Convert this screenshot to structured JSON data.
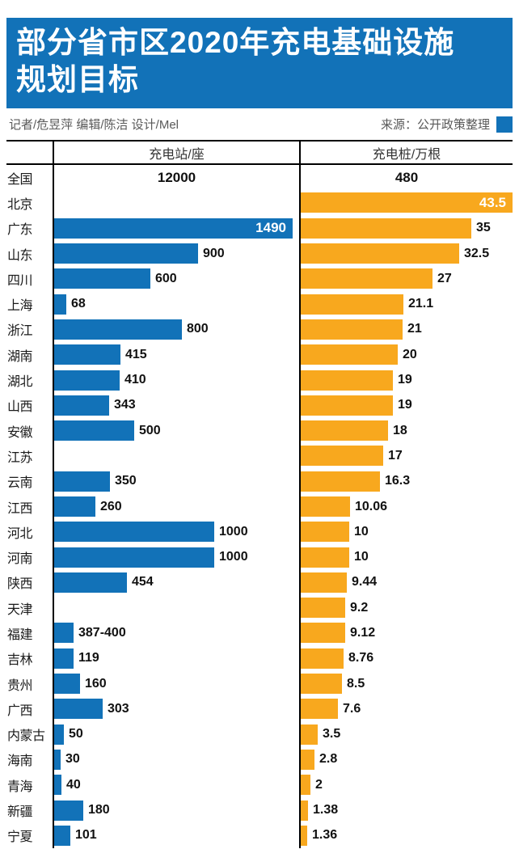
{
  "header": {
    "title_line1": "部分省市区2020年充电基础设施",
    "title_line2": "规划目标",
    "byline": "记者/危昱萍  编辑/陈洁  设计/Mel",
    "source": "来源：公开政策整理"
  },
  "columns": {
    "left": "充电站/座",
    "right": "充电桩/万根"
  },
  "colors": {
    "banner_blue": "#1272b8",
    "bar_blue": "#1272b8",
    "bar_yellow": "#f8a81e"
  },
  "chart_data": {
    "type": "bar",
    "orientation": "horizontal",
    "title": "部分省市区2020年充电基础设施规划目标",
    "categories": [
      "全国",
      "北京",
      "广东",
      "山东",
      "四川",
      "上海",
      "浙江",
      "湖南",
      "湖北",
      "山西",
      "安徽",
      "江苏",
      "云南",
      "江西",
      "河北",
      "河南",
      "陕西",
      "天津",
      "福建",
      "吉林",
      "贵州",
      "广西",
      "内蒙古",
      "海南",
      "青海",
      "新疆",
      "宁夏"
    ],
    "series": [
      {
        "name": "充电站/座",
        "values": [
          12000,
          null,
          1490,
          900,
          600,
          68,
          800,
          415,
          410,
          343,
          500,
          null,
          350,
          260,
          1000,
          1000,
          454,
          null,
          "387-400",
          119,
          160,
          303,
          50,
          30,
          40,
          180,
          101
        ]
      },
      {
        "name": "充电桩/万根",
        "values": [
          480,
          43.5,
          35,
          32.5,
          27,
          21.1,
          21,
          20,
          19,
          19,
          18,
          17,
          16.3,
          10.06,
          10,
          10,
          9.44,
          9.2,
          9.12,
          8.76,
          8.5,
          7.6,
          3.5,
          2.8,
          2,
          1.38,
          1.36
        ]
      }
    ],
    "legend_position": "column headers",
    "grid": false,
    "notes": "全国 row shown as plain centered text (no bars); 北京/江苏/天津 have no station bar; longest bars (广东 1490, 北京 43.5) carry white labels inside the bar"
  },
  "rows": [
    {
      "region": "全国",
      "station": {
        "label": "12000",
        "style": "center"
      },
      "pile": {
        "label": "480",
        "style": "center"
      }
    },
    {
      "region": "北京",
      "station": null,
      "pile": {
        "label": "43.5",
        "bar": 262,
        "style": "inside"
      }
    },
    {
      "region": "广东",
      "station": {
        "label": "1490",
        "bar": 295,
        "style": "inside"
      },
      "pile": {
        "label": "35",
        "bar": 211
      }
    },
    {
      "region": "山东",
      "station": {
        "label": "900",
        "bar": 178
      },
      "pile": {
        "label": "32.5",
        "bar": 196
      }
    },
    {
      "region": "四川",
      "station": {
        "label": "600",
        "bar": 119
      },
      "pile": {
        "label": "27",
        "bar": 163
      }
    },
    {
      "region": "上海",
      "station": {
        "label": "68",
        "bar": 15
      },
      "pile": {
        "label": "21.1",
        "bar": 127
      }
    },
    {
      "region": "浙江",
      "station": {
        "label": "800",
        "bar": 158
      },
      "pile": {
        "label": "21",
        "bar": 126
      }
    },
    {
      "region": "湖南",
      "station": {
        "label": "415",
        "bar": 82
      },
      "pile": {
        "label": "20",
        "bar": 120
      }
    },
    {
      "region": "湖北",
      "station": {
        "label": "410",
        "bar": 81
      },
      "pile": {
        "label": "19",
        "bar": 114
      }
    },
    {
      "region": "山西",
      "station": {
        "label": "343",
        "bar": 68
      },
      "pile": {
        "label": "19",
        "bar": 114
      }
    },
    {
      "region": "安徽",
      "station": {
        "label": "500",
        "bar": 99
      },
      "pile": {
        "label": "18",
        "bar": 108
      }
    },
    {
      "region": "江苏",
      "station": null,
      "pile": {
        "label": "17",
        "bar": 102
      }
    },
    {
      "region": "云南",
      "station": {
        "label": "350",
        "bar": 69
      },
      "pile": {
        "label": "16.3",
        "bar": 98
      }
    },
    {
      "region": "江西",
      "station": {
        "label": "260",
        "bar": 51
      },
      "pile": {
        "label": "10.06",
        "bar": 61
      }
    },
    {
      "region": "河北",
      "station": {
        "label": "1000",
        "bar": 198
      },
      "pile": {
        "label": "10",
        "bar": 60
      }
    },
    {
      "region": "河南",
      "station": {
        "label": "1000",
        "bar": 198
      },
      "pile": {
        "label": "10",
        "bar": 60
      }
    },
    {
      "region": "陕西",
      "station": {
        "label": "454",
        "bar": 90
      },
      "pile": {
        "label": "9.44",
        "bar": 57
      }
    },
    {
      "region": "天津",
      "station": null,
      "pile": {
        "label": "9.2",
        "bar": 55
      }
    },
    {
      "region": "福建",
      "station": {
        "label": "387-400",
        "bar": 24
      },
      "pile": {
        "label": "9.12",
        "bar": 55
      }
    },
    {
      "region": "吉林",
      "station": {
        "label": "119",
        "bar": 24
      },
      "pile": {
        "label": "8.76",
        "bar": 53
      }
    },
    {
      "region": "贵州",
      "station": {
        "label": "160",
        "bar": 32
      },
      "pile": {
        "label": "8.5",
        "bar": 51
      }
    },
    {
      "region": "广西",
      "station": {
        "label": "303",
        "bar": 60
      },
      "pile": {
        "label": "7.6",
        "bar": 46
      }
    },
    {
      "region": "内蒙古",
      "station": {
        "label": "50",
        "bar": 12
      },
      "pile": {
        "label": "3.5",
        "bar": 21
      }
    },
    {
      "region": "海南",
      "station": {
        "label": "30",
        "bar": 8
      },
      "pile": {
        "label": "2.8",
        "bar": 17
      }
    },
    {
      "region": "青海",
      "station": {
        "label": "40",
        "bar": 9
      },
      "pile": {
        "label": "2",
        "bar": 12
      }
    },
    {
      "region": "新疆",
      "station": {
        "label": "180",
        "bar": 36
      },
      "pile": {
        "label": "1.38",
        "bar": 9
      }
    },
    {
      "region": "宁夏",
      "station": {
        "label": "101",
        "bar": 20
      },
      "pile": {
        "label": "1.36",
        "bar": 8
      }
    }
  ]
}
